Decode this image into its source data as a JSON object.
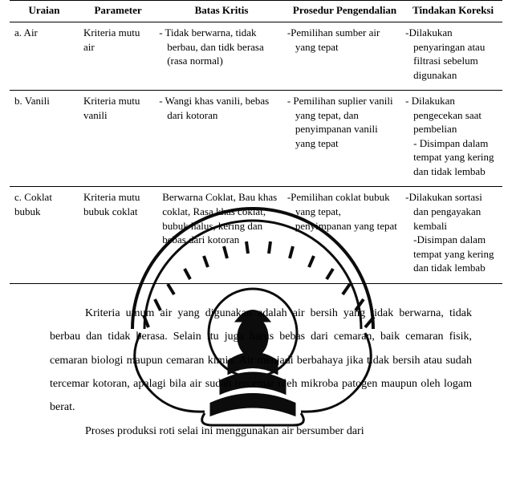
{
  "table": {
    "headers": {
      "uraian": "Uraian",
      "parameter": "Parameter",
      "batas": "Batas Kritis",
      "prosedur": "Prosedur Pengendalian",
      "tindakan": "Tindakan Koreksi"
    },
    "rows": [
      {
        "label": "a.  Air",
        "parameter": "Kriteria mutu air",
        "batas": "-  Tidak berwarna, tidak berbau, dan tidk berasa (rasa normal)",
        "prosedur": "-Pemilihan sumber air yang tepat",
        "tindakan": "-Dilakukan penyaringan atau filtrasi sebelum digunakan"
      },
      {
        "label": "b.  Vanili",
        "parameter": "Kriteria mutu vanili",
        "batas": "-  Wangi  khas vanili, bebas dari kotoran",
        "prosedur": "-  Pemilihan suplier vanili yang tepat, dan penyimpanan vanili yang tepat",
        "tindakan": "- Dilakukan pengecekan saat pembelian\n- Disimpan dalam tempat yang kering dan tidak lembab"
      },
      {
        "label": "c.  Coklat bubuk",
        "parameter": "Kriteria mutu bubuk coklat",
        "batas": "Berwarna Coklat, Bau khas coklat, Rasa khas coklat, bubuk halus, kering dan bebas dari kotoran",
        "prosedur": "-Pemilihan coklat bubuk yang tepat, penyimpanan yang tepat",
        "tindakan": "-Dilakukan sortasi dan pengayakan kembali\n-Disimpan dalam tempat yang kering dan tidak lembab"
      }
    ]
  },
  "paragraphs": {
    "p1": "Kriteria umum air yang digunakan adalah air bersih yang tidak berwarna, tidak berbau dan tidak berasa. Selain itu juga harus bebas dari cemaran, baik cemaran fisik, cemaran biologi maupun cemaran kimia. Air menjadi berbahaya jika tidak bersih atau sudah tercemar kotoran, apalagi bila air sudah tercemar oleh mikroba patogen maupun oleh logam berat.",
    "p2": "Proses  produksi  roti  selai  ini  menggunakan  air  bersumber  dari"
  },
  "style": {
    "font_family": "Times New Roman",
    "body_font_size_pt": 11,
    "table_font_size_pt": 10,
    "text_color": "#000000",
    "background_color": "#ffffff",
    "rule_color": "#000000",
    "seal_stroke": "#000000"
  }
}
